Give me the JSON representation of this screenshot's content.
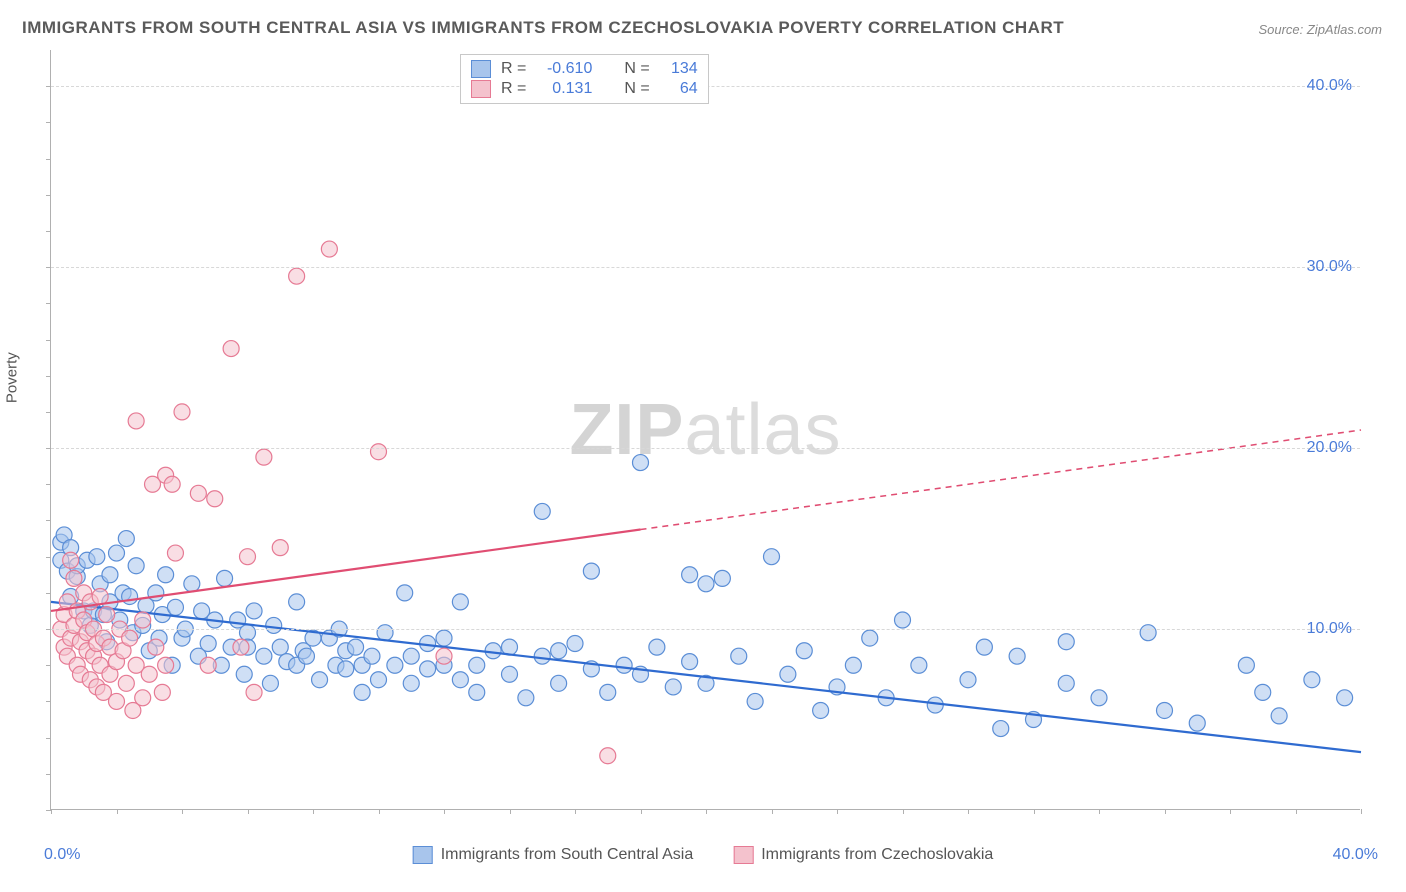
{
  "title": "IMMIGRANTS FROM SOUTH CENTRAL ASIA VS IMMIGRANTS FROM CZECHOSLOVAKIA POVERTY CORRELATION CHART",
  "source": "Source: ZipAtlas.com",
  "y_axis_title": "Poverty",
  "watermark_bold": "ZIP",
  "watermark_light": "atlas",
  "chart": {
    "type": "scatter",
    "xlim": [
      0,
      40
    ],
    "ylim": [
      0,
      42
    ],
    "x_tick_labels": {
      "min": "0.0%",
      "max": "40.0%"
    },
    "y_ticks": [
      {
        "value": 10,
        "label": "10.0%"
      },
      {
        "value": 20,
        "label": "20.0%"
      },
      {
        "value": 30,
        "label": "30.0%"
      },
      {
        "value": 40,
        "label": "40.0%"
      }
    ],
    "x_minor_ticks": [
      0,
      2,
      4,
      6,
      8,
      10,
      12,
      14,
      16,
      18,
      20,
      22,
      24,
      26,
      28,
      30,
      32,
      34,
      36,
      38,
      40
    ],
    "y_minor_ticks": [
      0,
      2,
      4,
      6,
      8,
      10,
      12,
      14,
      16,
      18,
      20,
      22,
      24,
      26,
      28,
      30,
      32,
      34,
      36,
      38,
      40
    ],
    "background_color": "#ffffff",
    "grid_color": "#d8d8d8",
    "axis_color": "#b0b0b0",
    "tick_label_color": "#4a7bd8",
    "marker_radius": 8,
    "marker_opacity": 0.55,
    "line_width": 2.2,
    "series": [
      {
        "name": "Immigrants from South Central Asia",
        "color_fill": "#a8c5ec",
        "color_stroke": "#5b8ed6",
        "line_color": "#2f6bd0",
        "R": "-0.610",
        "N": "134",
        "regression": {
          "x1": 0,
          "y1": 11.5,
          "x2": 40,
          "y2": 3.2,
          "solid_to_x": 40
        },
        "points": [
          [
            0.3,
            14.8
          ],
          [
            0.3,
            13.8
          ],
          [
            0.4,
            15.2
          ],
          [
            0.5,
            13.2
          ],
          [
            0.6,
            14.5
          ],
          [
            0.6,
            11.8
          ],
          [
            0.8,
            12.9
          ],
          [
            0.8,
            13.5
          ],
          [
            1.0,
            11.0
          ],
          [
            1.1,
            13.8
          ],
          [
            1.2,
            10.2
          ],
          [
            1.3,
            11.0
          ],
          [
            1.4,
            14.0
          ],
          [
            1.5,
            12.5
          ],
          [
            1.6,
            10.8
          ],
          [
            1.7,
            9.3
          ],
          [
            1.8,
            13.0
          ],
          [
            1.8,
            11.5
          ],
          [
            2.0,
            14.2
          ],
          [
            2.1,
            10.5
          ],
          [
            2.2,
            12.0
          ],
          [
            2.3,
            15.0
          ],
          [
            2.4,
            11.8
          ],
          [
            2.5,
            9.8
          ],
          [
            2.6,
            13.5
          ],
          [
            2.8,
            10.2
          ],
          [
            2.9,
            11.3
          ],
          [
            3.0,
            8.8
          ],
          [
            3.2,
            12.0
          ],
          [
            3.3,
            9.5
          ],
          [
            3.4,
            10.8
          ],
          [
            3.5,
            13.0
          ],
          [
            3.7,
            8.0
          ],
          [
            3.8,
            11.2
          ],
          [
            4.0,
            9.5
          ],
          [
            4.1,
            10.0
          ],
          [
            4.3,
            12.5
          ],
          [
            4.5,
            8.5
          ],
          [
            4.6,
            11.0
          ],
          [
            4.8,
            9.2
          ],
          [
            5.0,
            10.5
          ],
          [
            5.2,
            8.0
          ],
          [
            5.3,
            12.8
          ],
          [
            5.5,
            9.0
          ],
          [
            5.7,
            10.5
          ],
          [
            5.9,
            7.5
          ],
          [
            6.0,
            9.8
          ],
          [
            6.0,
            9.0
          ],
          [
            6.2,
            11.0
          ],
          [
            6.5,
            8.5
          ],
          [
            6.7,
            7.0
          ],
          [
            6.8,
            10.2
          ],
          [
            7.0,
            9.0
          ],
          [
            7.2,
            8.2
          ],
          [
            7.5,
            11.5
          ],
          [
            7.5,
            8.0
          ],
          [
            7.7,
            8.8
          ],
          [
            7.8,
            8.5
          ],
          [
            8.0,
            9.5
          ],
          [
            8.2,
            7.2
          ],
          [
            8.5,
            9.5
          ],
          [
            8.7,
            8.0
          ],
          [
            8.8,
            10.0
          ],
          [
            9.0,
            7.8
          ],
          [
            9.0,
            8.8
          ],
          [
            9.3,
            9.0
          ],
          [
            9.5,
            6.5
          ],
          [
            9.5,
            8.0
          ],
          [
            9.8,
            8.5
          ],
          [
            10.0,
            7.2
          ],
          [
            10.2,
            9.8
          ],
          [
            10.5,
            8.0
          ],
          [
            10.8,
            12.0
          ],
          [
            11.0,
            7.0
          ],
          [
            11.0,
            8.5
          ],
          [
            11.5,
            9.2
          ],
          [
            11.5,
            7.8
          ],
          [
            12.0,
            8.0
          ],
          [
            12.0,
            9.5
          ],
          [
            12.5,
            7.2
          ],
          [
            12.5,
            11.5
          ],
          [
            13.0,
            6.5
          ],
          [
            13.0,
            8.0
          ],
          [
            13.5,
            8.8
          ],
          [
            14.0,
            7.5
          ],
          [
            14.0,
            9.0
          ],
          [
            14.5,
            6.2
          ],
          [
            15.0,
            8.5
          ],
          [
            15.0,
            16.5
          ],
          [
            15.5,
            7.0
          ],
          [
            15.5,
            8.8
          ],
          [
            16.0,
            9.2
          ],
          [
            16.5,
            13.2
          ],
          [
            16.5,
            7.8
          ],
          [
            17.0,
            6.5
          ],
          [
            17.5,
            8.0
          ],
          [
            18.0,
            19.2
          ],
          [
            18.0,
            7.5
          ],
          [
            18.5,
            9.0
          ],
          [
            19.0,
            6.8
          ],
          [
            19.5,
            13.0
          ],
          [
            19.5,
            8.2
          ],
          [
            20.0,
            12.5
          ],
          [
            20.0,
            7.0
          ],
          [
            20.5,
            12.8
          ],
          [
            21.0,
            8.5
          ],
          [
            21.5,
            6.0
          ],
          [
            22.0,
            14.0
          ],
          [
            22.5,
            7.5
          ],
          [
            23.0,
            8.8
          ],
          [
            23.5,
            5.5
          ],
          [
            24.0,
            6.8
          ],
          [
            24.5,
            8.0
          ],
          [
            25.0,
            9.5
          ],
          [
            25.5,
            6.2
          ],
          [
            26.0,
            10.5
          ],
          [
            26.5,
            8.0
          ],
          [
            27.0,
            5.8
          ],
          [
            28.0,
            7.2
          ],
          [
            28.5,
            9.0
          ],
          [
            29.0,
            4.5
          ],
          [
            29.5,
            8.5
          ],
          [
            30.0,
            5.0
          ],
          [
            31.0,
            9.3
          ],
          [
            31.0,
            7.0
          ],
          [
            32.0,
            6.2
          ],
          [
            33.5,
            9.8
          ],
          [
            34.0,
            5.5
          ],
          [
            35.0,
            4.8
          ],
          [
            36.5,
            8.0
          ],
          [
            37.0,
            6.5
          ],
          [
            37.5,
            5.2
          ],
          [
            38.5,
            7.2
          ],
          [
            39.5,
            6.2
          ]
        ]
      },
      {
        "name": "Immigrants from Czechoslovakia",
        "color_fill": "#f4c2cd",
        "color_stroke": "#e67a94",
        "line_color": "#e04d72",
        "R": "0.131",
        "N": "64",
        "regression": {
          "x1": 0,
          "y1": 11.0,
          "x2": 40,
          "y2": 21.0,
          "solid_to_x": 18
        },
        "points": [
          [
            0.3,
            10.0
          ],
          [
            0.4,
            9.0
          ],
          [
            0.4,
            10.8
          ],
          [
            0.5,
            11.5
          ],
          [
            0.5,
            8.5
          ],
          [
            0.6,
            13.8
          ],
          [
            0.6,
            9.5
          ],
          [
            0.7,
            12.8
          ],
          [
            0.7,
            10.2
          ],
          [
            0.8,
            8.0
          ],
          [
            0.8,
            11.0
          ],
          [
            0.9,
            9.3
          ],
          [
            0.9,
            7.5
          ],
          [
            1.0,
            10.5
          ],
          [
            1.0,
            12.0
          ],
          [
            1.1,
            8.8
          ],
          [
            1.1,
            9.8
          ],
          [
            1.2,
            11.5
          ],
          [
            1.2,
            7.2
          ],
          [
            1.3,
            8.5
          ],
          [
            1.3,
            10.0
          ],
          [
            1.4,
            6.8
          ],
          [
            1.4,
            9.2
          ],
          [
            1.5,
            11.8
          ],
          [
            1.5,
            8.0
          ],
          [
            1.6,
            6.5
          ],
          [
            1.6,
            9.5
          ],
          [
            1.7,
            10.8
          ],
          [
            1.8,
            7.5
          ],
          [
            1.8,
            9.0
          ],
          [
            2.0,
            8.2
          ],
          [
            2.0,
            6.0
          ],
          [
            2.1,
            10.0
          ],
          [
            2.2,
            8.8
          ],
          [
            2.3,
            7.0
          ],
          [
            2.4,
            9.5
          ],
          [
            2.5,
            5.5
          ],
          [
            2.6,
            8.0
          ],
          [
            2.6,
            21.5
          ],
          [
            2.8,
            6.2
          ],
          [
            2.8,
            10.5
          ],
          [
            3.0,
            7.5
          ],
          [
            3.1,
            18.0
          ],
          [
            3.2,
            9.0
          ],
          [
            3.4,
            6.5
          ],
          [
            3.5,
            18.5
          ],
          [
            3.5,
            8.0
          ],
          [
            3.7,
            18.0
          ],
          [
            3.8,
            14.2
          ],
          [
            4.0,
            22.0
          ],
          [
            4.5,
            17.5
          ],
          [
            4.8,
            8.0
          ],
          [
            5.0,
            17.2
          ],
          [
            5.5,
            25.5
          ],
          [
            5.8,
            9.0
          ],
          [
            6.0,
            14.0
          ],
          [
            6.2,
            6.5
          ],
          [
            6.5,
            19.5
          ],
          [
            7.0,
            14.5
          ],
          [
            7.5,
            29.5
          ],
          [
            8.5,
            31.0
          ],
          [
            10.0,
            19.8
          ],
          [
            12.0,
            8.5
          ],
          [
            17.0,
            3.0
          ]
        ]
      }
    ]
  },
  "legend_top": {
    "r_label": "R =",
    "n_label": "N ="
  }
}
